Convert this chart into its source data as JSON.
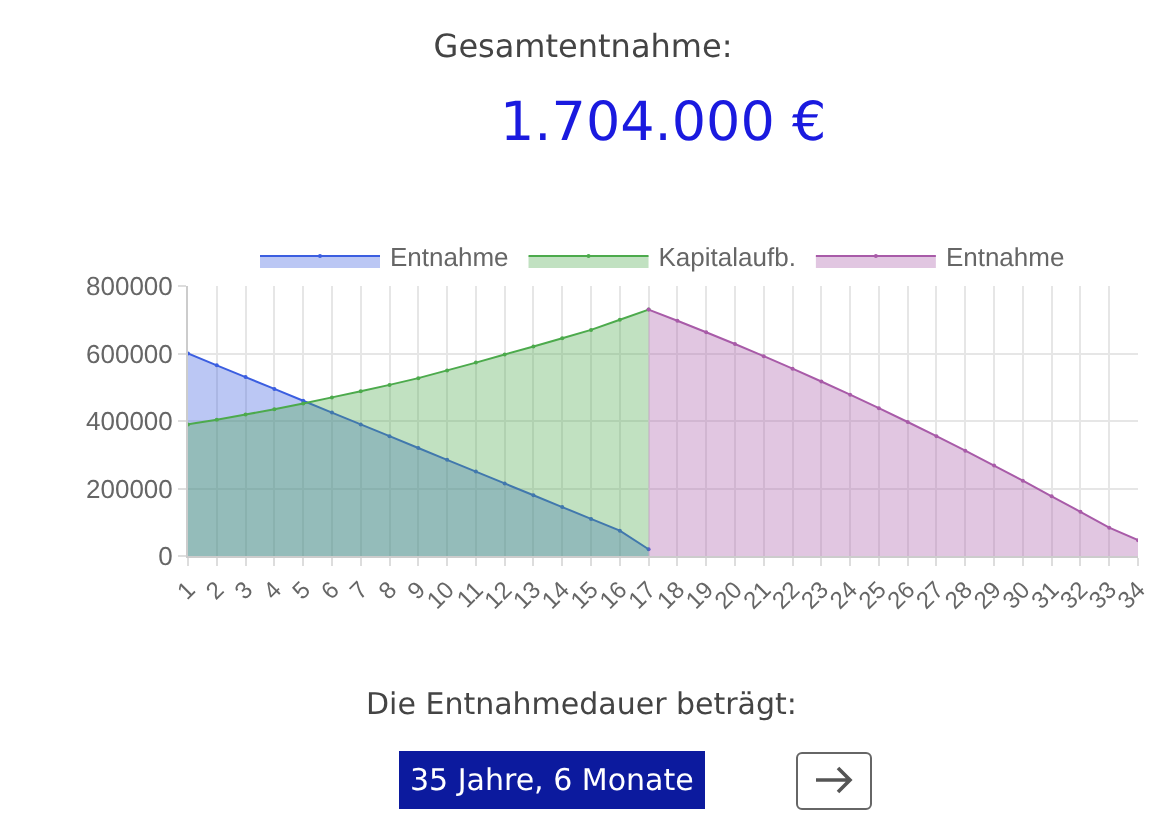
{
  "chart_data": {
    "type": "area",
    "title": "Gesamtentnahme:",
    "subtitle": "1.704.000 €",
    "categories": [
      "1",
      "2",
      "3",
      "4",
      "5",
      "6",
      "7",
      "8",
      "9",
      "10",
      "11",
      "12",
      "13",
      "14",
      "15",
      "16",
      "17",
      "18",
      "19",
      "20",
      "21",
      "22",
      "23",
      "24",
      "25",
      "26",
      "27",
      "28",
      "29",
      "30",
      "31",
      "32",
      "33",
      "34"
    ],
    "series": [
      {
        "name": "Entnahme",
        "color": "#3b5ee0",
        "values": [
          600000,
          565000,
          530000,
          495000,
          460000,
          425000,
          390000,
          355000,
          320000,
          285000,
          250000,
          215000,
          180000,
          145000,
          110000,
          75000,
          20000,
          null,
          null,
          null,
          null,
          null,
          null,
          null,
          null,
          null,
          null,
          null,
          null,
          null,
          null,
          null,
          null,
          null
        ]
      },
      {
        "name": "Kapitalaufb.",
        "color": "#4caa4c",
        "values": [
          390000,
          404000,
          419000,
          435000,
          452000,
          470000,
          488000,
          507000,
          527000,
          550000,
          573000,
          597000,
          621000,
          645000,
          670000,
          700000,
          730000,
          null,
          null,
          null,
          null,
          null,
          null,
          null,
          null,
          null,
          null,
          null,
          null,
          null,
          null,
          null,
          null,
          null
        ]
      },
      {
        "name": "Entnahme",
        "color": "#a85ba8",
        "values": [
          null,
          null,
          null,
          null,
          null,
          null,
          null,
          null,
          null,
          null,
          null,
          null,
          null,
          null,
          null,
          null,
          730000,
          697000,
          663000,
          628000,
          592000,
          555000,
          517000,
          478000,
          438000,
          397000,
          355000,
          312000,
          268000,
          223000,
          177000,
          131000,
          84000,
          47000
        ]
      }
    ],
    "ylim": [
      0,
      800000
    ],
    "yticks": [
      0,
      200000,
      400000,
      600000,
      800000
    ],
    "grid": true,
    "legend": "top",
    "annotations": [
      "Die Entnahmedauer beträgt:",
      "35 Jahre, 6 Monate"
    ]
  }
}
